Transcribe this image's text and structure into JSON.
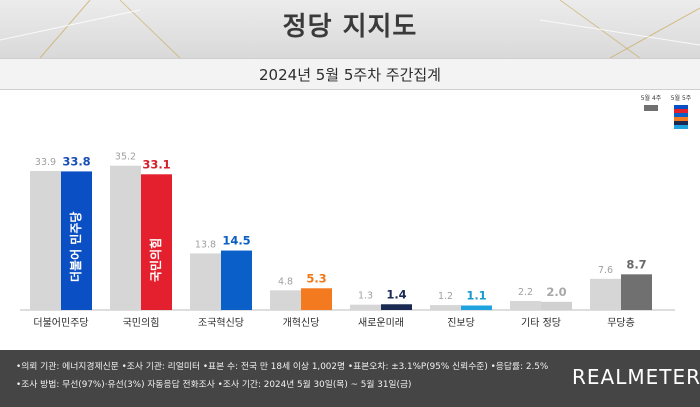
{
  "header": {
    "title": "정당 지지도",
    "subtitle": "2024년 5월 5주차 주간집계"
  },
  "legend": {
    "prev_label": "5월 4주",
    "curr_label": "5월 5주"
  },
  "colors": {
    "prev": "#d6d6d6",
    "curr": [
      "#0b4fc4",
      "#e4202e",
      "#0a60c8",
      "#f47a20",
      "#1b2a52",
      "#1fa3de",
      "#d0d0d0",
      "#707070"
    ],
    "curr_label": [
      "#1a4fb8",
      "#d4202a",
      "#0a5fc4",
      "#f07818",
      "#1b2a52",
      "#1799cc",
      "#a8a8a8",
      "#6a6a6a"
    ]
  },
  "bar_logos": [
    "더불어 민주당",
    "국민의힘"
  ],
  "chart_data": {
    "type": "bar",
    "title": "정당 지지도",
    "subtitle": "2024년 5월 5주차 주간집계",
    "categories": [
      "더불어민주당",
      "국민의힘",
      "조국혁신당",
      "개혁신당",
      "새로운미래",
      "진보당",
      "기타 정당",
      "무당층"
    ],
    "series": [
      {
        "name": "5월 4주",
        "values": [
          33.9,
          35.2,
          13.8,
          4.8,
          1.3,
          1.2,
          2.2,
          7.6
        ]
      },
      {
        "name": "5월 5주",
        "values": [
          33.8,
          33.1,
          14.5,
          5.3,
          1.4,
          1.1,
          2.0,
          8.7
        ]
      }
    ],
    "ylim": [
      0,
      38
    ],
    "grid": false,
    "legend": "top-right"
  },
  "footer": {
    "line1": "•의뢰 기관: 에너지경제신문  •조사 기관: 리얼미터  •표본 수: 전국 만 18세 이상 1,002명  •표본오차: ±3.1%P(95% 신뢰수준)  •응답률: 2.5%",
    "line2": "•조사 방법: 무선(97%)·유선(3%) 자동응답 전화조사  •조사 기간: 2024년 5월 30일(목) ~ 5월 31일(금)",
    "brand": "REALMETER"
  }
}
